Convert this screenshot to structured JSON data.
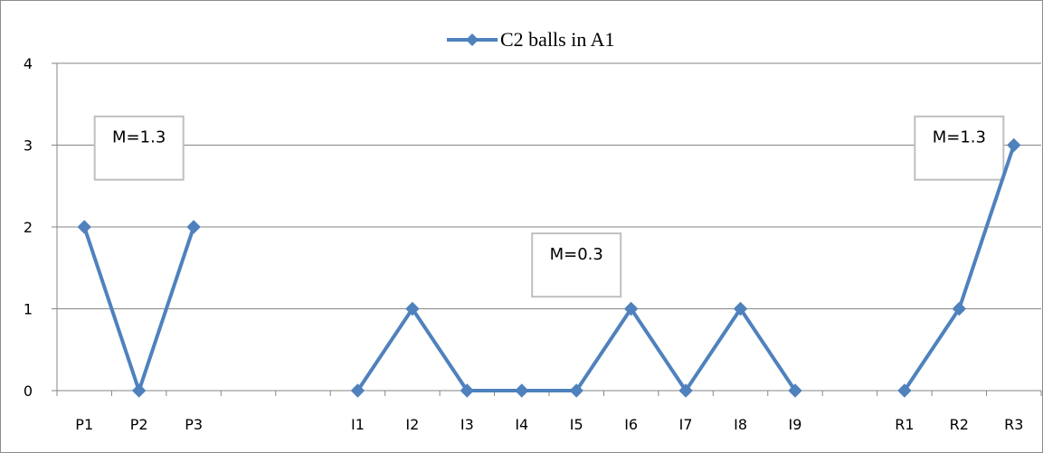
{
  "chart_data": {
    "type": "line",
    "categories": [
      "P1",
      "P2",
      "P3",
      "",
      "",
      "I1",
      "I2",
      "I3",
      "I4",
      "I5",
      "I6",
      "I7",
      "I8",
      "I9",
      "",
      "R1",
      "R2",
      "R3"
    ],
    "series": [
      {
        "name": "C2 balls in A1",
        "values": [
          2,
          0,
          2,
          null,
          null,
          0,
          1,
          0,
          0,
          0,
          1,
          0,
          1,
          0,
          null,
          0,
          1,
          3
        ],
        "color": "#4F81BD"
      }
    ],
    "ylim": [
      0,
      4
    ],
    "yticks": [
      0,
      1,
      2,
      3,
      4
    ],
    "grid": true,
    "legend_position": "top",
    "annotations": [
      {
        "text": "M=1.3",
        "category_index": 1,
        "y": 3.13
      },
      {
        "text": "M=0.3",
        "category_index": 9,
        "y": 1.7
      },
      {
        "text": "M=1.3",
        "category_index": 16,
        "y": 3.13
      }
    ]
  }
}
